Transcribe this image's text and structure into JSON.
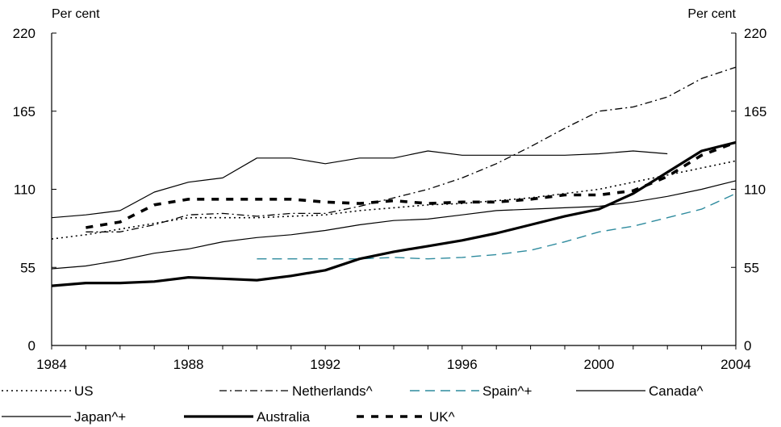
{
  "chart_data": {
    "type": "line",
    "left_axis_label": "Per cent",
    "right_axis_label": "Per cent",
    "xlim": [
      1984,
      2004
    ],
    "ylim": [
      0,
      220
    ],
    "x_ticks": [
      1984,
      1988,
      1992,
      1996,
      2000,
      2004
    ],
    "y_ticks": [
      0,
      55,
      110,
      165,
      220
    ],
    "grid": false,
    "legend_placement": "bottom",
    "series": [
      {
        "name": "US",
        "color": "#000000",
        "style": "dotted",
        "x": [
          1984,
          1985,
          1986,
          1987,
          1988,
          1989,
          1990,
          1991,
          1992,
          1993,
          1994,
          1995,
          1996,
          1997,
          1998,
          1999,
          2000,
          2001,
          2002,
          2003,
          2004
        ],
        "y": [
          75,
          78,
          82,
          86,
          90,
          90,
          90,
          91,
          92,
          95,
          97,
          99,
          100,
          102,
          104,
          107,
          110,
          115,
          120,
          125,
          130
        ]
      },
      {
        "name": "Netherlands^",
        "color": "#000000",
        "style": "dashdot",
        "x": [
          1985,
          1986,
          1987,
          1988,
          1989,
          1990,
          1991,
          1992,
          1993,
          1994,
          1995,
          1996,
          1997,
          1998,
          1999,
          2000,
          2001,
          2002,
          2003,
          2004
        ],
        "y": [
          80,
          80,
          85,
          92,
          93,
          91,
          93,
          93,
          98,
          104,
          110,
          118,
          128,
          140,
          153,
          165,
          168,
          175,
          188,
          196
        ]
      },
      {
        "name": "Spain^+",
        "color": "#2e8b9e",
        "style": "dashed",
        "x": [
          1990,
          1991,
          1992,
          1993,
          1994,
          1995,
          1996,
          1997,
          1998,
          1999,
          2000,
          2001,
          2002,
          2003,
          2004
        ],
        "y": [
          61,
          61,
          61,
          61,
          62,
          61,
          62,
          64,
          67,
          73,
          80,
          84,
          90,
          96,
          107
        ]
      },
      {
        "name": "Canada^",
        "color": "#000000",
        "style": "solid-thin",
        "x": [
          1984,
          1985,
          1986,
          1987,
          1988,
          1989,
          1990,
          1991,
          1992,
          1993,
          1994,
          1995,
          1996,
          1997,
          1998,
          1999,
          2000,
          2001,
          2002
        ],
        "y": [
          90,
          92,
          95,
          108,
          115,
          118,
          132,
          132,
          128,
          132,
          132,
          137,
          134,
          134,
          134,
          134,
          135,
          137,
          135
        ]
      },
      {
        "name": "Japan^+",
        "color": "#000000",
        "style": "solid-thin",
        "x": [
          1984,
          1985,
          1986,
          1987,
          1988,
          1989,
          1990,
          1991,
          1992,
          1993,
          1994,
          1995,
          1996,
          1997,
          1998,
          1999,
          2000,
          2001,
          2002,
          2003,
          2004
        ],
        "y": [
          54,
          56,
          60,
          65,
          68,
          73,
          76,
          78,
          81,
          85,
          88,
          89,
          92,
          95,
          96,
          97,
          98,
          101,
          105,
          110,
          116
        ]
      },
      {
        "name": "Australia",
        "color": "#000000",
        "style": "solid-thick",
        "x": [
          1984,
          1985,
          1986,
          1987,
          1988,
          1989,
          1990,
          1991,
          1992,
          1993,
          1994,
          1995,
          1996,
          1997,
          1998,
          1999,
          2000,
          2001,
          2002,
          2003,
          2004
        ],
        "y": [
          42,
          44,
          44,
          45,
          48,
          47,
          46,
          49,
          53,
          61,
          66,
          70,
          74,
          79,
          85,
          91,
          96,
          107,
          122,
          137,
          143
        ]
      },
      {
        "name": "UK^",
        "color": "#000000",
        "style": "dashed-thick",
        "x": [
          1985,
          1986,
          1987,
          1988,
          1989,
          1990,
          1991,
          1992,
          1993,
          1994,
          1995,
          1996,
          1997,
          1998,
          1999,
          2000,
          2001,
          2002,
          2003,
          2004
        ],
        "y": [
          83,
          87,
          99,
          103,
          103,
          103,
          103,
          101,
          100,
          102,
          100,
          101,
          101,
          103,
          106,
          106,
          109,
          119,
          134,
          143
        ]
      }
    ]
  }
}
